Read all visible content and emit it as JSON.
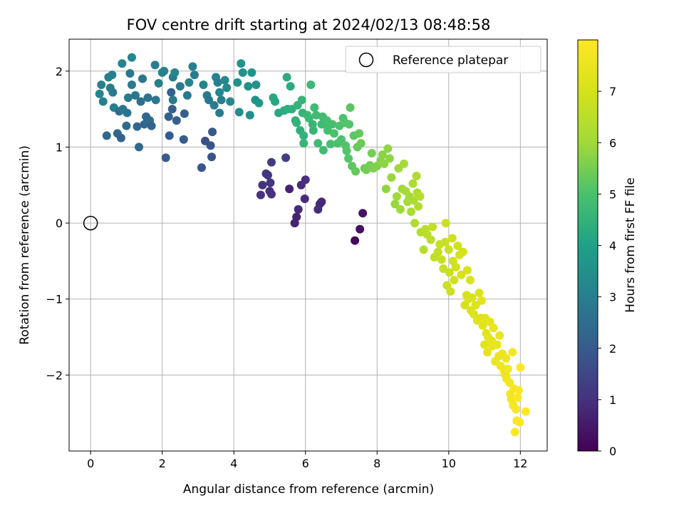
{
  "chart_data": {
    "type": "scatter",
    "title": "FOV centre drift starting at 2024/02/13 08:48:58",
    "xlabel": "Angular distance from reference (arcmin)",
    "ylabel": "Rotation from reference (arcmin)",
    "xlim": [
      -0.6,
      12.75
    ],
    "ylim": [
      -3.0,
      2.42
    ],
    "xticks": [
      0,
      2,
      4,
      6,
      8,
      10,
      12
    ],
    "yticks": [
      -2,
      -1,
      0,
      1,
      2
    ],
    "grid": true,
    "legend": {
      "position": "upper right",
      "entries": [
        "Reference platepar"
      ]
    },
    "reference_point": {
      "x": 0,
      "y": 0,
      "marker": "open-circle"
    },
    "colorbar": {
      "label": "Hours from first FF file",
      "colormap": "viridis",
      "range": [
        0,
        8.0
      ],
      "ticks": [
        0,
        1,
        2,
        3,
        4,
        5,
        6,
        7
      ]
    },
    "points": [
      {
        "x": 0.25,
        "y": 1.7,
        "c": 3.2
      },
      {
        "x": 0.3,
        "y": 1.82,
        "c": 3.1
      },
      {
        "x": 0.35,
        "y": 1.6,
        "c": 3.0
      },
      {
        "x": 0.45,
        "y": 1.15,
        "c": 2.3
      },
      {
        "x": 0.5,
        "y": 1.92,
        "c": 3.0
      },
      {
        "x": 0.55,
        "y": 1.78,
        "c": 2.9
      },
      {
        "x": 0.6,
        "y": 1.95,
        "c": 3.0
      },
      {
        "x": 0.62,
        "y": 1.72,
        "c": 2.9
      },
      {
        "x": 0.65,
        "y": 1.52,
        "c": 3.0
      },
      {
        "x": 0.75,
        "y": 1.18,
        "c": 2.3
      },
      {
        "x": 0.8,
        "y": 1.47,
        "c": 2.6
      },
      {
        "x": 0.85,
        "y": 1.12,
        "c": 2.2
      },
      {
        "x": 0.88,
        "y": 2.1,
        "c": 3.1
      },
      {
        "x": 0.9,
        "y": 1.5,
        "c": 2.8
      },
      {
        "x": 1.0,
        "y": 1.28,
        "c": 2.4
      },
      {
        "x": 1.02,
        "y": 1.45,
        "c": 2.7
      },
      {
        "x": 1.05,
        "y": 1.65,
        "c": 2.9
      },
      {
        "x": 1.1,
        "y": 1.97,
        "c": 2.8
      },
      {
        "x": 1.15,
        "y": 2.18,
        "c": 3.2
      },
      {
        "x": 1.15,
        "y": 1.82,
        "c": 2.9
      },
      {
        "x": 1.25,
        "y": 1.68,
        "c": 2.8
      },
      {
        "x": 1.3,
        "y": 1.27,
        "c": 2.3
      },
      {
        "x": 1.35,
        "y": 1.0,
        "c": 2.4
      },
      {
        "x": 1.4,
        "y": 1.6,
        "c": 2.5
      },
      {
        "x": 1.45,
        "y": 1.9,
        "c": 2.7
      },
      {
        "x": 1.5,
        "y": 1.3,
        "c": 2.3
      },
      {
        "x": 1.55,
        "y": 1.4,
        "c": 2.3
      },
      {
        "x": 1.6,
        "y": 1.65,
        "c": 2.6
      },
      {
        "x": 1.65,
        "y": 1.35,
        "c": 2.4
      },
      {
        "x": 1.7,
        "y": 1.28,
        "c": 2.2
      },
      {
        "x": 1.8,
        "y": 2.08,
        "c": 3.0
      },
      {
        "x": 1.82,
        "y": 1.62,
        "c": 2.8
      },
      {
        "x": 1.9,
        "y": 1.84,
        "c": 3.0
      },
      {
        "x": 2.0,
        "y": 1.98,
        "c": 3.2
      },
      {
        "x": 2.05,
        "y": 2.0,
        "c": 3.1
      },
      {
        "x": 2.1,
        "y": 0.86,
        "c": 2.0
      },
      {
        "x": 2.18,
        "y": 1.4,
        "c": 2.1
      },
      {
        "x": 2.2,
        "y": 1.15,
        "c": 2.0
      },
      {
        "x": 2.25,
        "y": 1.72,
        "c": 2.2
      },
      {
        "x": 2.28,
        "y": 1.5,
        "c": 2.1
      },
      {
        "x": 2.3,
        "y": 1.92,
        "c": 3.0
      },
      {
        "x": 2.3,
        "y": 1.62,
        "c": 2.9
      },
      {
        "x": 2.35,
        "y": 1.98,
        "c": 3.2
      },
      {
        "x": 2.4,
        "y": 1.35,
        "c": 2.1
      },
      {
        "x": 2.5,
        "y": 1.8,
        "c": 2.9
      },
      {
        "x": 2.6,
        "y": 1.1,
        "c": 2.0
      },
      {
        "x": 2.62,
        "y": 1.44,
        "c": 2.1
      },
      {
        "x": 2.7,
        "y": 1.68,
        "c": 2.8
      },
      {
        "x": 2.75,
        "y": 1.85,
        "c": 3.1
      },
      {
        "x": 2.85,
        "y": 2.06,
        "c": 3.0
      },
      {
        "x": 2.9,
        "y": 1.95,
        "c": 2.9
      },
      {
        "x": 3.1,
        "y": 0.73,
        "c": 1.8
      },
      {
        "x": 3.15,
        "y": 1.82,
        "c": 3.2
      },
      {
        "x": 3.2,
        "y": 1.08,
        "c": 1.7
      },
      {
        "x": 3.25,
        "y": 1.68,
        "c": 2.9
      },
      {
        "x": 3.3,
        "y": 1.62,
        "c": 2.8
      },
      {
        "x": 3.35,
        "y": 1.02,
        "c": 1.8
      },
      {
        "x": 3.38,
        "y": 0.87,
        "c": 1.8
      },
      {
        "x": 3.4,
        "y": 1.2,
        "c": 1.9
      },
      {
        "x": 3.45,
        "y": 1.55,
        "c": 2.9
      },
      {
        "x": 3.5,
        "y": 1.92,
        "c": 3.1
      },
      {
        "x": 3.55,
        "y": 1.85,
        "c": 3.0
      },
      {
        "x": 3.6,
        "y": 1.72,
        "c": 3.2
      },
      {
        "x": 3.6,
        "y": 1.45,
        "c": 2.9
      },
      {
        "x": 3.65,
        "y": 1.62,
        "c": 3.0
      },
      {
        "x": 3.75,
        "y": 1.88,
        "c": 3.3
      },
      {
        "x": 3.8,
        "y": 1.78,
        "c": 3.3
      },
      {
        "x": 3.9,
        "y": 1.6,
        "c": 3.3
      },
      {
        "x": 4.1,
        "y": 1.85,
        "c": 3.5
      },
      {
        "x": 4.15,
        "y": 1.46,
        "c": 3.4
      },
      {
        "x": 4.2,
        "y": 2.1,
        "c": 3.6
      },
      {
        "x": 4.25,
        "y": 1.98,
        "c": 3.5
      },
      {
        "x": 4.4,
        "y": 1.8,
        "c": 3.5
      },
      {
        "x": 4.45,
        "y": 1.42,
        "c": 3.5
      },
      {
        "x": 4.5,
        "y": 1.98,
        "c": 3.6
      },
      {
        "x": 4.6,
        "y": 1.62,
        "c": 3.6
      },
      {
        "x": 4.62,
        "y": 1.82,
        "c": 3.6
      },
      {
        "x": 4.7,
        "y": 1.58,
        "c": 3.7
      },
      {
        "x": 4.75,
        "y": 0.37,
        "c": 1.0
      },
      {
        "x": 4.8,
        "y": 0.5,
        "c": 1.0
      },
      {
        "x": 4.9,
        "y": 0.65,
        "c": 1.1
      },
      {
        "x": 4.95,
        "y": 0.63,
        "c": 1.1
      },
      {
        "x": 5.0,
        "y": 0.42,
        "c": 1.0
      },
      {
        "x": 5.02,
        "y": 0.53,
        "c": 1.1
      },
      {
        "x": 5.05,
        "y": 0.8,
        "c": 1.2
      },
      {
        "x": 5.05,
        "y": 0.38,
        "c": 1.0
      },
      {
        "x": 5.1,
        "y": 1.65,
        "c": 4.2
      },
      {
        "x": 5.15,
        "y": 1.6,
        "c": 4.2
      },
      {
        "x": 5.25,
        "y": 1.45,
        "c": 4.2
      },
      {
        "x": 5.4,
        "y": 1.48,
        "c": 4.3
      },
      {
        "x": 5.45,
        "y": 0.86,
        "c": 1.3
      },
      {
        "x": 5.48,
        "y": 1.92,
        "c": 4.3
      },
      {
        "x": 5.5,
        "y": 1.5,
        "c": 4.4
      },
      {
        "x": 5.55,
        "y": 0.45,
        "c": 0.7
      },
      {
        "x": 5.58,
        "y": 1.8,
        "c": 4.3
      },
      {
        "x": 5.62,
        "y": 1.5,
        "c": 4.4
      },
      {
        "x": 5.7,
        "y": 0.0,
        "c": 0.7
      },
      {
        "x": 5.72,
        "y": 1.35,
        "c": 4.5
      },
      {
        "x": 5.75,
        "y": 1.32,
        "c": 4.5
      },
      {
        "x": 5.75,
        "y": 0.08,
        "c": 0.7
      },
      {
        "x": 5.78,
        "y": 1.55,
        "c": 4.5
      },
      {
        "x": 5.8,
        "y": 0.18,
        "c": 0.8
      },
      {
        "x": 5.85,
        "y": 1.22,
        "c": 4.4
      },
      {
        "x": 5.88,
        "y": 0.5,
        "c": 0.9
      },
      {
        "x": 5.9,
        "y": 1.62,
        "c": 4.6
      },
      {
        "x": 5.92,
        "y": 1.45,
        "c": 4.5
      },
      {
        "x": 5.95,
        "y": 1.15,
        "c": 4.5
      },
      {
        "x": 5.95,
        "y": 1.05,
        "c": 4.6
      },
      {
        "x": 5.98,
        "y": 0.32,
        "c": 0.9
      },
      {
        "x": 6.0,
        "y": 0.57,
        "c": 1.0
      },
      {
        "x": 6.05,
        "y": 1.42,
        "c": 4.7
      },
      {
        "x": 6.1,
        "y": 1.38,
        "c": 4.7
      },
      {
        "x": 6.15,
        "y": 1.82,
        "c": 4.7
      },
      {
        "x": 6.2,
        "y": 1.3,
        "c": 4.6
      },
      {
        "x": 6.22,
        "y": 1.22,
        "c": 4.6
      },
      {
        "x": 6.25,
        "y": 1.52,
        "c": 4.8
      },
      {
        "x": 6.3,
        "y": 1.42,
        "c": 4.8
      },
      {
        "x": 6.35,
        "y": 1.05,
        "c": 4.8
      },
      {
        "x": 6.35,
        "y": 0.18,
        "c": 0.9
      },
      {
        "x": 6.4,
        "y": 0.25,
        "c": 0.9
      },
      {
        "x": 6.45,
        "y": 1.3,
        "c": 4.8
      },
      {
        "x": 6.45,
        "y": 0.28,
        "c": 0.8
      },
      {
        "x": 6.48,
        "y": 1.4,
        "c": 4.8
      },
      {
        "x": 6.5,
        "y": 0.96,
        "c": 4.8
      },
      {
        "x": 6.55,
        "y": 1.3,
        "c": 4.8
      },
      {
        "x": 6.6,
        "y": 1.35,
        "c": 4.9
      },
      {
        "x": 6.62,
        "y": 1.22,
        "c": 4.9
      },
      {
        "x": 6.7,
        "y": 1.04,
        "c": 4.9
      },
      {
        "x": 6.75,
        "y": 1.3,
        "c": 4.9
      },
      {
        "x": 6.8,
        "y": 1.18,
        "c": 5.0
      },
      {
        "x": 6.9,
        "y": 1.05,
        "c": 5.0
      },
      {
        "x": 6.95,
        "y": 1.28,
        "c": 5.0
      },
      {
        "x": 7.0,
        "y": 1.1,
        "c": 5.0
      },
      {
        "x": 7.05,
        "y": 1.38,
        "c": 5.0
      },
      {
        "x": 7.1,
        "y": 1.32,
        "c": 5.1
      },
      {
        "x": 7.12,
        "y": 1.02,
        "c": 5.1
      },
      {
        "x": 7.15,
        "y": 0.95,
        "c": 5.1
      },
      {
        "x": 7.2,
        "y": 0.85,
        "c": 5.1
      },
      {
        "x": 7.22,
        "y": 1.3,
        "c": 5.1
      },
      {
        "x": 7.25,
        "y": 1.52,
        "c": 5.2
      },
      {
        "x": 7.3,
        "y": 0.75,
        "c": 5.2
      },
      {
        "x": 7.35,
        "y": 1.15,
        "c": 5.2
      },
      {
        "x": 7.38,
        "y": -0.23,
        "c": 0.2
      },
      {
        "x": 7.4,
        "y": 0.68,
        "c": 5.3
      },
      {
        "x": 7.45,
        "y": 1.0,
        "c": 5.3
      },
      {
        "x": 7.5,
        "y": 1.18,
        "c": 5.3
      },
      {
        "x": 7.52,
        "y": -0.08,
        "c": 0.3
      },
      {
        "x": 7.55,
        "y": 1.05,
        "c": 5.4
      },
      {
        "x": 7.6,
        "y": 0.13,
        "c": 0.4
      },
      {
        "x": 7.65,
        "y": 0.72,
        "c": 5.4
      },
      {
        "x": 7.7,
        "y": 0.7,
        "c": 5.5
      },
      {
        "x": 7.8,
        "y": 0.76,
        "c": 5.5
      },
      {
        "x": 7.85,
        "y": 0.92,
        "c": 5.5
      },
      {
        "x": 7.9,
        "y": 0.72,
        "c": 5.6
      },
      {
        "x": 8.0,
        "y": 0.75,
        "c": 5.6
      },
      {
        "x": 8.1,
        "y": 0.82,
        "c": 5.7
      },
      {
        "x": 8.15,
        "y": 0.9,
        "c": 5.7
      },
      {
        "x": 8.2,
        "y": 0.78,
        "c": 5.8
      },
      {
        "x": 8.25,
        "y": 0.45,
        "c": 5.8
      },
      {
        "x": 8.3,
        "y": 0.98,
        "c": 5.8
      },
      {
        "x": 8.35,
        "y": 0.85,
        "c": 5.8
      },
      {
        "x": 8.4,
        "y": 0.6,
        "c": 5.9
      },
      {
        "x": 8.5,
        "y": 0.25,
        "c": 5.9
      },
      {
        "x": 8.55,
        "y": 0.35,
        "c": 6.0
      },
      {
        "x": 8.6,
        "y": 0.72,
        "c": 6.0
      },
      {
        "x": 8.65,
        "y": 0.18,
        "c": 6.0
      },
      {
        "x": 8.7,
        "y": 0.45,
        "c": 6.0
      },
      {
        "x": 8.75,
        "y": 0.78,
        "c": 6.1
      },
      {
        "x": 8.8,
        "y": 0.42,
        "c": 6.1
      },
      {
        "x": 8.85,
        "y": 0.28,
        "c": 6.1
      },
      {
        "x": 8.9,
        "y": 0.35,
        "c": 6.1
      },
      {
        "x": 8.95,
        "y": 0.15,
        "c": 6.2
      },
      {
        "x": 9.0,
        "y": 0.52,
        "c": 6.2
      },
      {
        "x": 9.02,
        "y": 0.3,
        "c": 6.2
      },
      {
        "x": 9.05,
        "y": 0.0,
        "c": 6.3
      },
      {
        "x": 9.1,
        "y": 0.62,
        "c": 6.3
      },
      {
        "x": 9.12,
        "y": 0.4,
        "c": 6.3
      },
      {
        "x": 9.15,
        "y": 0.22,
        "c": 6.3
      },
      {
        "x": 9.2,
        "y": 0.35,
        "c": 6.4
      },
      {
        "x": 9.22,
        "y": -0.12,
        "c": 6.4
      },
      {
        "x": 9.3,
        "y": -0.35,
        "c": 6.4
      },
      {
        "x": 9.35,
        "y": -0.08,
        "c": 6.5
      },
      {
        "x": 9.4,
        "y": -0.15,
        "c": 6.5
      },
      {
        "x": 9.5,
        "y": -0.22,
        "c": 6.5
      },
      {
        "x": 9.55,
        "y": -0.05,
        "c": 6.6
      },
      {
        "x": 9.6,
        "y": -0.45,
        "c": 6.6
      },
      {
        "x": 9.7,
        "y": -0.38,
        "c": 6.6
      },
      {
        "x": 9.75,
        "y": -0.28,
        "c": 6.7
      },
      {
        "x": 9.8,
        "y": -0.48,
        "c": 6.7
      },
      {
        "x": 9.85,
        "y": -0.6,
        "c": 6.7
      },
      {
        "x": 9.9,
        "y": -0.25,
        "c": 6.7
      },
      {
        "x": 9.92,
        "y": -0.0,
        "c": 6.8
      },
      {
        "x": 9.95,
        "y": -0.82,
        "c": 6.8
      },
      {
        "x": 10.0,
        "y": -0.35,
        "c": 6.8
      },
      {
        "x": 10.02,
        "y": -0.65,
        "c": 6.8
      },
      {
        "x": 10.05,
        "y": -0.9,
        "c": 6.8
      },
      {
        "x": 10.1,
        "y": -0.2,
        "c": 6.9
      },
      {
        "x": 10.12,
        "y": -0.5,
        "c": 6.9
      },
      {
        "x": 10.15,
        "y": -0.75,
        "c": 6.9
      },
      {
        "x": 10.2,
        "y": -0.58,
        "c": 6.9
      },
      {
        "x": 10.25,
        "y": -0.3,
        "c": 6.9
      },
      {
        "x": 10.3,
        "y": -0.42,
        "c": 7.0
      },
      {
        "x": 10.35,
        "y": -0.68,
        "c": 7.0
      },
      {
        "x": 10.4,
        "y": -0.38,
        "c": 7.0
      },
      {
        "x": 10.45,
        "y": -1.08,
        "c": 7.0
      },
      {
        "x": 10.5,
        "y": -0.95,
        "c": 7.0
      },
      {
        "x": 10.52,
        "y": -0.62,
        "c": 7.1
      },
      {
        "x": 10.55,
        "y": -1.0,
        "c": 7.1
      },
      {
        "x": 10.6,
        "y": -0.75,
        "c": 7.1
      },
      {
        "x": 10.62,
        "y": -1.15,
        "c": 7.1
      },
      {
        "x": 10.65,
        "y": -0.98,
        "c": 7.1
      },
      {
        "x": 10.7,
        "y": -1.2,
        "c": 7.2
      },
      {
        "x": 10.75,
        "y": -1.08,
        "c": 7.2
      },
      {
        "x": 10.8,
        "y": -1.28,
        "c": 7.2
      },
      {
        "x": 10.85,
        "y": -0.92,
        "c": 7.2
      },
      {
        "x": 10.9,
        "y": -1.25,
        "c": 7.2
      },
      {
        "x": 10.92,
        "y": -1.02,
        "c": 7.3
      },
      {
        "x": 10.95,
        "y": -1.35,
        "c": 7.3
      },
      {
        "x": 11.0,
        "y": -1.6,
        "c": 7.3
      },
      {
        "x": 11.02,
        "y": -1.25,
        "c": 7.3
      },
      {
        "x": 11.05,
        "y": -1.45,
        "c": 7.3
      },
      {
        "x": 11.08,
        "y": -1.7,
        "c": 7.4
      },
      {
        "x": 11.1,
        "y": -1.5,
        "c": 7.4
      },
      {
        "x": 11.15,
        "y": -1.3,
        "c": 7.4
      },
      {
        "x": 11.2,
        "y": -1.55,
        "c": 7.4
      },
      {
        "x": 11.22,
        "y": -1.62,
        "c": 7.4
      },
      {
        "x": 11.25,
        "y": -1.38,
        "c": 7.5
      },
      {
        "x": 11.3,
        "y": -1.82,
        "c": 7.5
      },
      {
        "x": 11.35,
        "y": -1.6,
        "c": 7.5
      },
      {
        "x": 11.4,
        "y": -1.75,
        "c": 7.5
      },
      {
        "x": 11.42,
        "y": -1.48,
        "c": 7.5
      },
      {
        "x": 11.45,
        "y": -1.88,
        "c": 7.6
      },
      {
        "x": 11.5,
        "y": -1.72,
        "c": 7.6
      },
      {
        "x": 11.55,
        "y": -1.95,
        "c": 7.6
      },
      {
        "x": 11.58,
        "y": -2.0,
        "c": 7.6
      },
      {
        "x": 11.6,
        "y": -1.78,
        "c": 7.6
      },
      {
        "x": 11.62,
        "y": -2.05,
        "c": 7.7
      },
      {
        "x": 11.65,
        "y": -1.92,
        "c": 7.7
      },
      {
        "x": 11.7,
        "y": -2.1,
        "c": 7.7
      },
      {
        "x": 11.72,
        "y": -2.25,
        "c": 7.7
      },
      {
        "x": 11.75,
        "y": -2.32,
        "c": 7.8
      },
      {
        "x": 11.78,
        "y": -1.7,
        "c": 7.8
      },
      {
        "x": 11.8,
        "y": -2.4,
        "c": 7.8
      },
      {
        "x": 11.82,
        "y": -2.18,
        "c": 7.8
      },
      {
        "x": 11.85,
        "y": -2.75,
        "c": 7.9
      },
      {
        "x": 11.88,
        "y": -2.45,
        "c": 7.9
      },
      {
        "x": 11.9,
        "y": -2.6,
        "c": 7.9
      },
      {
        "x": 11.92,
        "y": -2.3,
        "c": 7.9
      },
      {
        "x": 11.95,
        "y": -2.2,
        "c": 7.9
      },
      {
        "x": 11.98,
        "y": -2.62,
        "c": 8.0
      },
      {
        "x": 12.0,
        "y": -1.9,
        "c": 8.0
      },
      {
        "x": 12.15,
        "y": -2.48,
        "c": 8.0
      }
    ]
  }
}
